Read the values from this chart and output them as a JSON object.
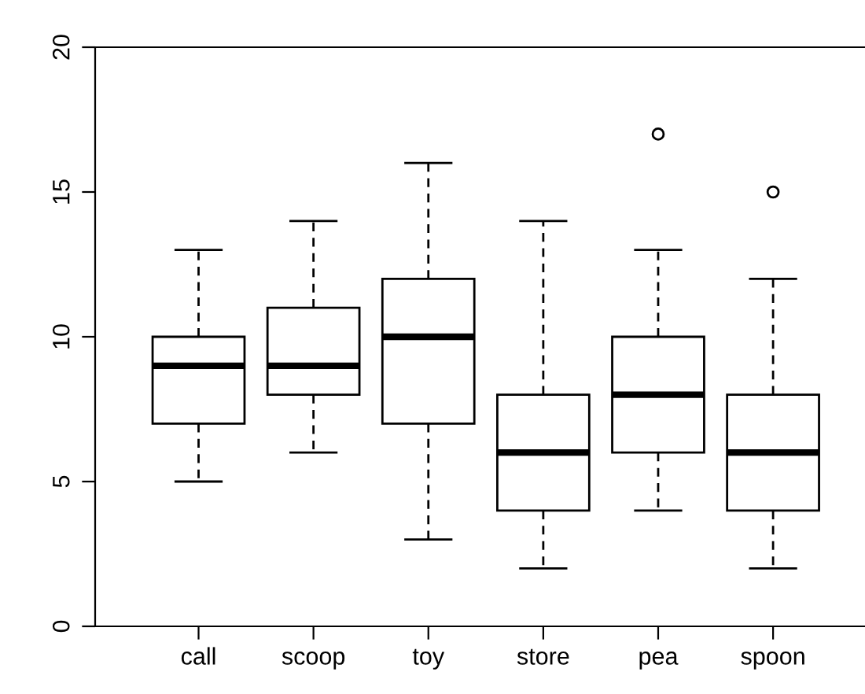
{
  "chart_data": {
    "type": "box",
    "categories": [
      "call",
      "scoop",
      "toy",
      "store",
      "pea",
      "spoon"
    ],
    "boxes": [
      {
        "low": 5,
        "q1": 7,
        "median": 9,
        "q3": 10,
        "high": 13
      },
      {
        "low": 6,
        "q1": 8,
        "median": 9,
        "q3": 11,
        "high": 14
      },
      {
        "low": 3,
        "q1": 7,
        "median": 10,
        "q3": 12,
        "high": 16
      },
      {
        "low": 2,
        "q1": 4,
        "median": 6,
        "q3": 8,
        "high": 14
      },
      {
        "low": 4,
        "q1": 6,
        "median": 8,
        "q3": 10,
        "high": 13,
        "outliers": [
          17
        ]
      },
      {
        "low": 2,
        "q1": 4,
        "median": 6,
        "q3": 8,
        "high": 12,
        "outliers": [
          15
        ]
      }
    ],
    "color": "#ffffff",
    "ylim": [
      0,
      20
    ],
    "yticks": [
      0,
      5,
      10,
      15,
      20
    ],
    "grid": false,
    "line_style": "dashed"
  }
}
